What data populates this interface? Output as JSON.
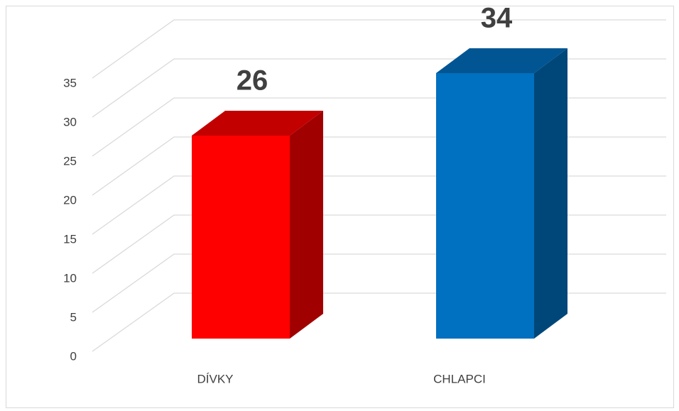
{
  "chart_data": {
    "type": "bar3d",
    "categories": [
      "DÍVKY",
      "CHLAPCI"
    ],
    "values": [
      26,
      34
    ],
    "colors": [
      "#ff0000",
      "#0070c0"
    ],
    "ylim": [
      0,
      35
    ],
    "yticks": [
      0,
      5,
      10,
      15,
      20,
      25,
      30,
      35
    ],
    "grid": true
  }
}
